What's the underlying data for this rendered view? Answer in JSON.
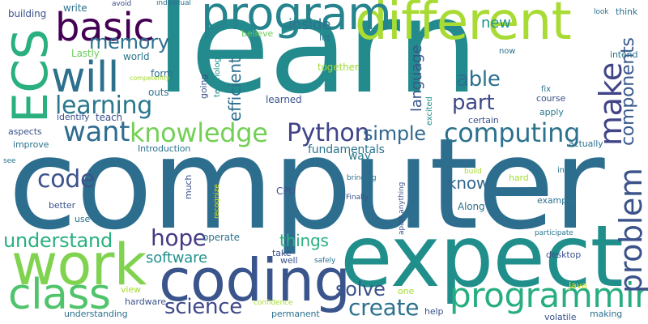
{
  "words": [
    {
      "text": "learn",
      "color": "#238a8d"
    },
    {
      "text": "computer",
      "color": "#2d6e8e"
    },
    {
      "text": "expect",
      "color": "#208f8c"
    },
    {
      "text": "coding",
      "color": "#3a548c"
    },
    {
      "text": "different",
      "color": "#a8db34"
    },
    {
      "text": "program",
      "color": "#25848e"
    },
    {
      "text": "work",
      "color": "#80d34f"
    },
    {
      "text": "ECS",
      "color": "#2ab07f"
    },
    {
      "text": "basic",
      "color": "#440154"
    },
    {
      "text": "class",
      "color": "#50c46a"
    },
    {
      "text": "will",
      "color": "#2d708e"
    },
    {
      "text": "programming",
      "color": "#27ad81"
    },
    {
      "text": "computing",
      "color": "#2c728e"
    },
    {
      "text": "problem",
      "color": "#3b528b"
    },
    {
      "text": "knowledge",
      "color": "#73d055"
    },
    {
      "text": "make",
      "color": "#414487"
    },
    {
      "text": "want",
      "color": "#2f6c8e"
    },
    {
      "text": "science",
      "color": "#3e4989"
    },
    {
      "text": "learning",
      "color": "#2a788e"
    },
    {
      "text": "Python",
      "color": "#414487"
    },
    {
      "text": "memory",
      "color": "#2c728e"
    },
    {
      "text": "understand",
      "color": "#2ab07f"
    },
    {
      "text": "create",
      "color": "#2c728e"
    },
    {
      "text": "components",
      "color": "#38598c"
    },
    {
      "text": "hope",
      "color": "#443b84"
    },
    {
      "text": "code",
      "color": "#3b528b"
    },
    {
      "text": "part",
      "color": "#3e4989"
    },
    {
      "text": "able",
      "color": "#2d708e"
    },
    {
      "text": "solve",
      "color": "#3b528b"
    },
    {
      "text": "simple",
      "color": "#31688e"
    },
    {
      "text": "know",
      "color": "#31688e"
    },
    {
      "text": "software",
      "color": "#21918c"
    },
    {
      "text": "things",
      "color": "#2ab07f"
    },
    {
      "text": "language",
      "color": "#39568c"
    },
    {
      "text": "efficient",
      "color": "#2d708e"
    },
    {
      "text": "inside",
      "color": "#2c728e"
    },
    {
      "text": "new",
      "color": "#21918c"
    },
    {
      "text": "fundamentals",
      "color": "#2c728e"
    },
    {
      "text": "way",
      "color": "#2a788e"
    },
    {
      "text": "write",
      "color": "#2c728e"
    },
    {
      "text": "building",
      "color": "#3b528b"
    },
    {
      "text": "Lastly",
      "color": "#6ccd5a"
    },
    {
      "text": "world",
      "color": "#2a788e"
    },
    {
      "text": "teach",
      "color": "#3b528b"
    },
    {
      "text": "outs",
      "color": "#2c728e"
    },
    {
      "text": "form",
      "color": "#2c728e"
    },
    {
      "text": "competently",
      "color": "#a8db34"
    },
    {
      "text": "technology",
      "color": "#21918c"
    },
    {
      "text": "going",
      "color": "#3b528b"
    },
    {
      "text": "believe",
      "color": "#6ccd5a"
    },
    {
      "text": "lot",
      "color": "#2c728e"
    },
    {
      "text": "together",
      "color": "#a0da39"
    },
    {
      "text": "learned",
      "color": "#3b528b"
    },
    {
      "text": "excited",
      "color": "#21918c"
    },
    {
      "text": "certain",
      "color": "#3b528b"
    },
    {
      "text": "fix",
      "color": "#2c728e"
    },
    {
      "text": "course",
      "color": "#3b528b"
    },
    {
      "text": "apply",
      "color": "#2a788e"
    },
    {
      "text": "intend",
      "color": "#2c728e"
    },
    {
      "text": "now",
      "color": "#2c728e"
    },
    {
      "text": "look",
      "color": "#2c728e"
    },
    {
      "text": "think",
      "color": "#2c728e"
    },
    {
      "text": "identify",
      "color": "#3b528b"
    },
    {
      "text": "aspects",
      "color": "#3b528b"
    },
    {
      "text": "improve",
      "color": "#2c728e"
    },
    {
      "text": "Introduction",
      "color": "#2c728e"
    },
    {
      "text": "see",
      "color": "#2c728e"
    },
    {
      "text": "better",
      "color": "#3b528b"
    },
    {
      "text": "use",
      "color": "#2c728e"
    },
    {
      "text": "much",
      "color": "#3b528b"
    },
    {
      "text": "recognize",
      "color": "#d8e219"
    },
    {
      "text": "CPU",
      "color": "#3b528b"
    },
    {
      "text": "operate",
      "color": "#2c728e"
    },
    {
      "text": "take",
      "color": "#3b528b"
    },
    {
      "text": "well",
      "color": "#3b528b"
    },
    {
      "text": "safely",
      "color": "#2c728e"
    },
    {
      "text": "view",
      "color": "#a8db34"
    },
    {
      "text": "hardware",
      "color": "#3b528b"
    },
    {
      "text": "understanding",
      "color": "#2c728e"
    },
    {
      "text": "confidence",
      "color": "#a8db34"
    },
    {
      "text": "permanent",
      "color": "#2c728e"
    },
    {
      "text": "one",
      "color": "#a8db34"
    },
    {
      "text": "help",
      "color": "#3b528b"
    },
    {
      "text": "Along",
      "color": "#2c728e"
    },
    {
      "text": "Finally",
      "color": "#3b528b"
    },
    {
      "text": "bringing",
      "color": "#2c728e"
    },
    {
      "text": "apart anything",
      "color": "#3b528b"
    },
    {
      "text": "build",
      "color": "#a8db34"
    },
    {
      "text": "hard",
      "color": "#a8db34"
    },
    {
      "text": "ins",
      "color": "#2c728e"
    },
    {
      "text": "example",
      "color": "#2c728e"
    },
    {
      "text": "participate",
      "color": "#2a788e"
    },
    {
      "text": "desktop",
      "color": "#3b528b"
    },
    {
      "text": "Java",
      "color": "#d8e219"
    },
    {
      "text": "making",
      "color": "#2c728e"
    },
    {
      "text": "volatile",
      "color": "#3b528b"
    },
    {
      "text": "actually",
      "color": "#2c728e"
    },
    {
      "text": "avoid",
      "color": "#3b528b"
    },
    {
      "text": "individual",
      "color": "#2c728e"
    }
  ]
}
